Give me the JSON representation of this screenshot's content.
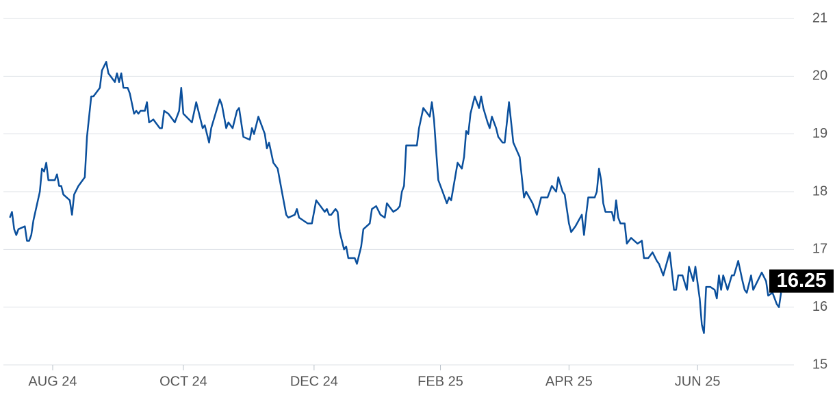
{
  "chart_data": {
    "type": "line",
    "color": "#0a4f9c",
    "grid": true,
    "y_axis_side": "right",
    "x": [
      0,
      1,
      2,
      3,
      4,
      7,
      8,
      9,
      10,
      11,
      14,
      15,
      16,
      17,
      18,
      21,
      22,
      23,
      24,
      25,
      28,
      29,
      30,
      32,
      35,
      36,
      38,
      39,
      42,
      43,
      45,
      46,
      49,
      50,
      51,
      52,
      53,
      55,
      56,
      58,
      59,
      60,
      61,
      63,
      64,
      65,
      67,
      70,
      71,
      72,
      74,
      77,
      79,
      80,
      81,
      85,
      87,
      90,
      91,
      93,
      94,
      98,
      99,
      101,
      102,
      104,
      106,
      107,
      109,
      112,
      113,
      114,
      116,
      119,
      120,
      121,
      123,
      125,
      127,
      129,
      130,
      133,
      134,
      135,
      139,
      141,
      143,
      145,
      147,
      148,
      149,
      150,
      152,
      153,
      154,
      156,
      157,
      158,
      161,
      162,
      164,
      165,
      168,
      169,
      171,
      173,
      175,
      176,
      177,
      179,
      181,
      182,
      183,
      184,
      185,
      188,
      190,
      191,
      193,
      196,
      197,
      198,
      199,
      200,
      202,
      204,
      205,
      206,
      209,
      211,
      212,
      213,
      214,
      215,
      217,
      219,
      220,
      221,
      223,
      224,
      225,
      227,
      228,
      230,
      231,
      232,
      233,
      235,
      238,
      240,
      241,
      244,
      246,
      248,
      249,
      251,
      253,
      255,
      256,
      258,
      259,
      261,
      262,
      264,
      267,
      268,
      269,
      270,
      273,
      274,
      275,
      276,
      277,
      278,
      281,
      282,
      283,
      284,
      285,
      287,
      288,
      290,
      293,
      295,
      296,
      298,
      300,
      302,
      303,
      305,
      308,
      310,
      311,
      312,
      314,
      316,
      317,
      319,
      320,
      322,
      323,
      324,
      325,
      327,
      329,
      330,
      331,
      332,
      333,
      335,
      337,
      338,
      340,
      342,
      343,
      344,
      346,
      347,
      349,
      351,
      353,
      354,
      356,
      358,
      359,
      360
    ],
    "values": [
      17.55,
      17.65,
      17.35,
      17.25,
      17.35,
      17.4,
      17.15,
      17.15,
      17.25,
      17.5,
      18.0,
      18.4,
      18.35,
      18.5,
      18.2,
      18.2,
      18.3,
      18.1,
      18.1,
      17.95,
      17.85,
      17.6,
      17.95,
      18.1,
      18.25,
      18.95,
      19.65,
      19.65,
      19.8,
      20.1,
      20.25,
      20.05,
      19.9,
      20.05,
      19.9,
      20.05,
      19.8,
      19.8,
      19.7,
      19.35,
      19.4,
      19.35,
      19.4,
      19.4,
      19.55,
      19.2,
      19.25,
      19.1,
      19.1,
      19.4,
      19.35,
      19.2,
      19.4,
      19.8,
      19.35,
      19.2,
      19.55,
      19.1,
      19.15,
      18.85,
      19.1,
      19.6,
      19.5,
      19.1,
      19.2,
      19.1,
      19.4,
      19.45,
      18.95,
      18.9,
      19.1,
      19.0,
      19.3,
      19.0,
      18.75,
      18.85,
      18.5,
      18.4,
      18.0,
      17.6,
      17.55,
      17.6,
      17.7,
      17.55,
      17.45,
      17.45,
      17.85,
      17.75,
      17.65,
      17.7,
      17.6,
      17.6,
      17.7,
      17.65,
      17.3,
      17.0,
      17.05,
      16.85,
      16.85,
      16.75,
      17.05,
      17.35,
      17.45,
      17.7,
      17.75,
      17.6,
      17.55,
      17.8,
      17.75,
      17.65,
      17.7,
      17.75,
      18.0,
      18.1,
      18.8,
      18.8,
      18.8,
      19.1,
      19.45,
      19.3,
      19.55,
      19.25,
      18.7,
      18.2,
      18.0,
      17.8,
      17.9,
      17.85,
      18.5,
      18.4,
      18.6,
      19.05,
      19.0,
      19.35,
      19.65,
      19.45,
      19.65,
      19.45,
      19.2,
      19.1,
      19.3,
      19.1,
      18.95,
      18.85,
      18.85,
      19.2,
      19.55,
      18.85,
      18.6,
      17.9,
      18.0,
      17.8,
      17.6,
      17.9,
      17.9,
      17.9,
      18.1,
      18.0,
      18.25,
      18.0,
      17.95,
      17.45,
      17.3,
      17.4,
      17.6,
      17.25,
      17.6,
      17.9,
      17.9,
      18.0,
      18.4,
      18.2,
      17.8,
      17.65,
      17.65,
      17.5,
      17.85,
      17.55,
      17.45,
      17.45,
      17.1,
      17.2,
      17.1,
      17.15,
      16.85,
      16.85,
      16.95,
      16.8,
      16.75,
      16.55,
      16.95,
      16.3,
      16.3,
      16.55,
      16.55,
      16.3,
      16.7,
      16.45,
      16.7,
      16.15,
      15.7,
      15.55,
      16.35,
      16.35,
      16.3,
      16.15,
      16.55,
      16.3,
      16.55,
      16.3,
      16.55,
      16.55,
      16.8,
      16.45,
      16.3,
      16.25,
      16.55,
      16.3,
      16.45,
      16.6,
      16.45,
      16.2,
      16.25,
      16.05,
      16.0,
      16.25
    ],
    "xlim": [
      -3,
      366
    ],
    "xticks": [
      {
        "value": 20,
        "label": "AUG 24"
      },
      {
        "value": 81,
        "label": "OCT 24"
      },
      {
        "value": 142,
        "label": "DEC 24"
      },
      {
        "value": 201,
        "label": "FEB 25"
      },
      {
        "value": 261,
        "label": "APR 25"
      },
      {
        "value": 321,
        "label": "JUN 25"
      }
    ],
    "ylim": [
      15,
      21
    ],
    "yticks": [
      15,
      16,
      17,
      18,
      19,
      20,
      21
    ]
  }
}
